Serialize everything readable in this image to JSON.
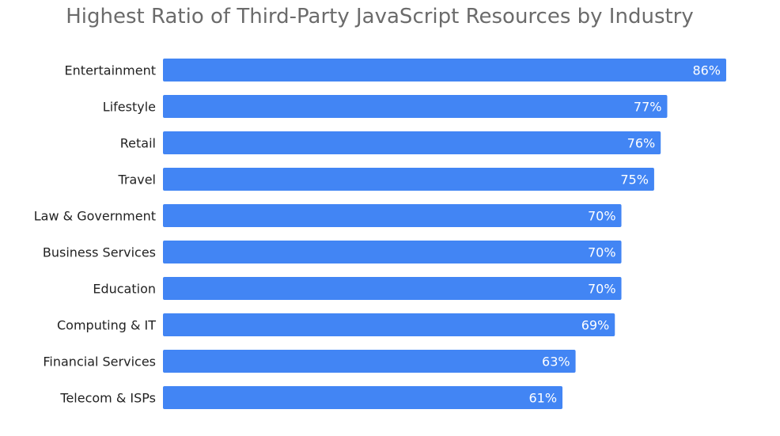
{
  "chart_data": {
    "type": "bar",
    "orientation": "horizontal",
    "title": "Highest Ratio of Third-Party JavaScript Resources by Industry",
    "categories": [
      "Entertainment",
      "Lifestyle",
      "Retail",
      "Travel",
      "Law & Government",
      "Business Services",
      "Education",
      "Computing & IT",
      "Financial Services",
      "Telecom & ISPs"
    ],
    "values": [
      86,
      77,
      76,
      75,
      70,
      70,
      70,
      69,
      63,
      61
    ],
    "data_labels": [
      "86%",
      "77%",
      "76%",
      "75%",
      "70%",
      "70%",
      "70%",
      "69%",
      "63%",
      "61%"
    ],
    "unit": "%",
    "xlim": [
      0,
      86
    ],
    "grid": false,
    "legend": "none",
    "bar_color": "#4285f4",
    "label_color": "#ffffff",
    "title_color": "#6b6b6b"
  }
}
